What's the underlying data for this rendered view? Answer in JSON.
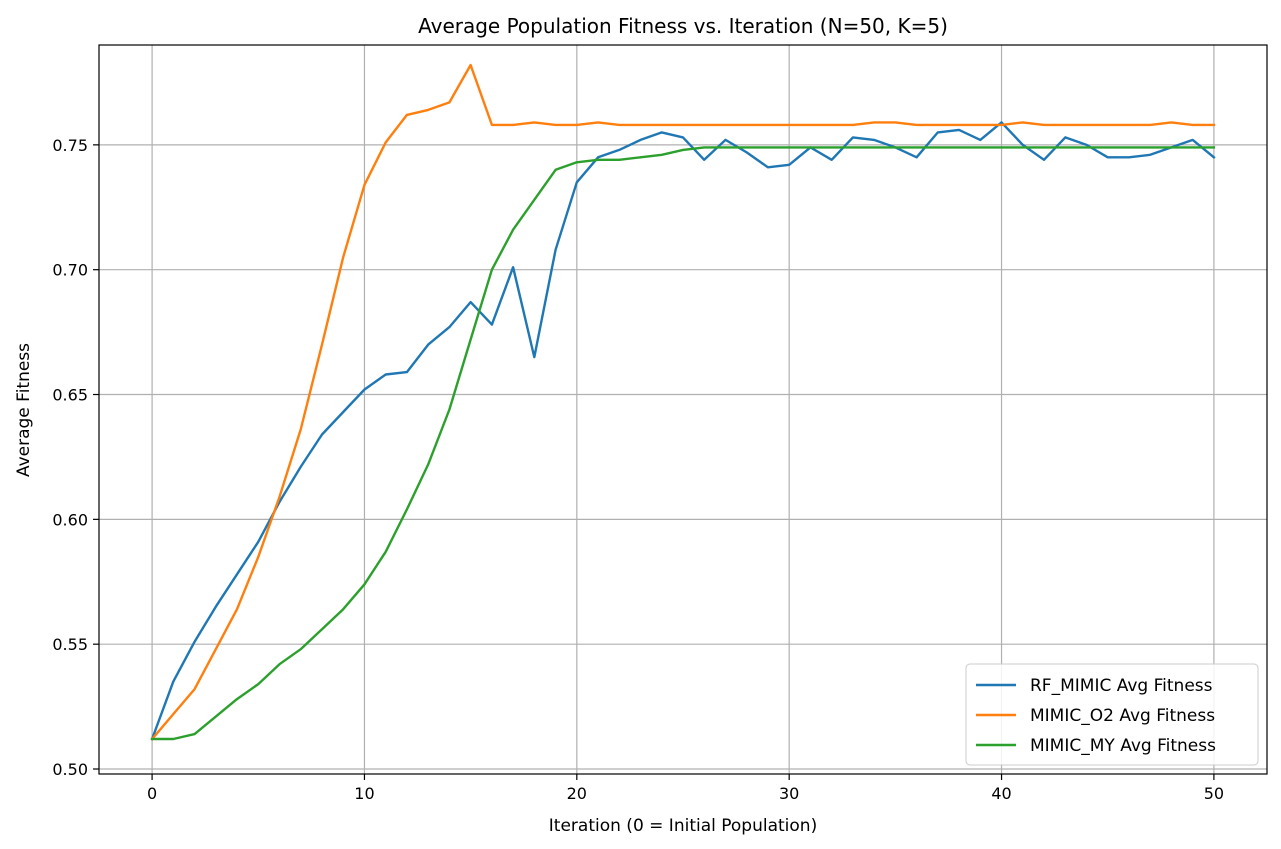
{
  "chart_data": {
    "type": "line",
    "title": "Average Population Fitness vs. Iteration (N=50, K=5)",
    "xlabel": "Iteration (0 = Initial Population)",
    "ylabel": "Average Fitness",
    "xlim": [
      -2.5,
      52.5
    ],
    "ylim": [
      0.498,
      0.79
    ],
    "xticks": [
      0,
      10,
      20,
      30,
      40,
      50
    ],
    "yticks": [
      0.5,
      0.55,
      0.6,
      0.65,
      0.7,
      0.75
    ],
    "xtick_labels": [
      "0",
      "10",
      "20",
      "30",
      "40",
      "50"
    ],
    "ytick_labels": [
      "0.50",
      "0.55",
      "0.60",
      "0.65",
      "0.70",
      "0.75"
    ],
    "grid": true,
    "legend_position": "bottom-right",
    "x": [
      0,
      1,
      2,
      3,
      4,
      5,
      6,
      7,
      8,
      9,
      10,
      11,
      12,
      13,
      14,
      15,
      16,
      17,
      18,
      19,
      20,
      21,
      22,
      23,
      24,
      25,
      26,
      27,
      28,
      29,
      30,
      31,
      32,
      33,
      34,
      35,
      36,
      37,
      38,
      39,
      40,
      41,
      42,
      43,
      44,
      45,
      46,
      47,
      48,
      49,
      50
    ],
    "series": [
      {
        "name": "RF_MIMIC Avg Fitness",
        "color": "#1f77b4",
        "values": [
          0.512,
          0.535,
          0.551,
          0.565,
          0.578,
          0.591,
          0.607,
          0.621,
          0.634,
          0.643,
          0.652,
          0.658,
          0.659,
          0.67,
          0.677,
          0.687,
          0.678,
          0.701,
          0.665,
          0.708,
          0.735,
          0.745,
          0.748,
          0.752,
          0.755,
          0.753,
          0.744,
          0.752,
          0.747,
          0.741,
          0.742,
          0.749,
          0.744,
          0.753,
          0.752,
          0.749,
          0.745,
          0.755,
          0.756,
          0.752,
          0.759,
          0.75,
          0.744,
          0.753,
          0.75,
          0.745,
          0.745,
          0.746,
          0.749,
          0.752,
          0.745
        ]
      },
      {
        "name": "MIMIC_O2 Avg Fitness",
        "color": "#ff7f0e",
        "values": [
          0.512,
          0.522,
          0.532,
          0.548,
          0.564,
          0.585,
          0.609,
          0.636,
          0.67,
          0.705,
          0.734,
          0.751,
          0.762,
          0.764,
          0.767,
          0.782,
          0.758,
          0.758,
          0.759,
          0.758,
          0.758,
          0.759,
          0.758,
          0.758,
          0.758,
          0.758,
          0.758,
          0.758,
          0.758,
          0.758,
          0.758,
          0.758,
          0.758,
          0.758,
          0.759,
          0.759,
          0.758,
          0.758,
          0.758,
          0.758,
          0.758,
          0.759,
          0.758,
          0.758,
          0.758,
          0.758,
          0.758,
          0.758,
          0.759,
          0.758,
          0.758
        ]
      },
      {
        "name": "MIMIC_MY Avg Fitness",
        "color": "#2ca02c",
        "values": [
          0.512,
          0.512,
          0.514,
          0.521,
          0.528,
          0.534,
          0.542,
          0.548,
          0.556,
          0.564,
          0.574,
          0.587,
          0.604,
          0.622,
          0.644,
          0.672,
          0.7,
          0.716,
          0.728,
          0.74,
          0.743,
          0.744,
          0.744,
          0.745,
          0.746,
          0.748,
          0.749,
          0.749,
          0.749,
          0.749,
          0.749,
          0.749,
          0.749,
          0.749,
          0.749,
          0.749,
          0.749,
          0.749,
          0.749,
          0.749,
          0.749,
          0.749,
          0.749,
          0.749,
          0.749,
          0.749,
          0.749,
          0.749,
          0.749,
          0.749,
          0.749
        ]
      }
    ]
  }
}
